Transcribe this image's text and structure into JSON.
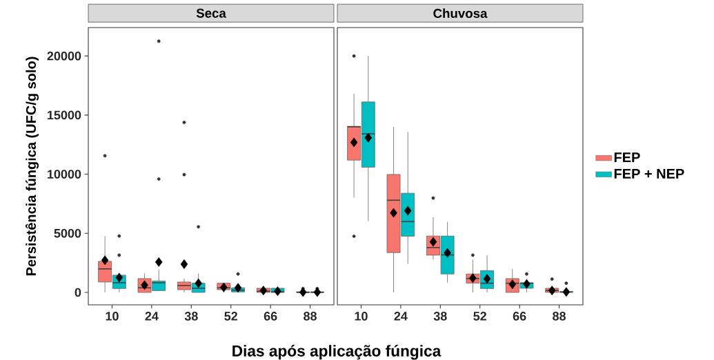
{
  "chart_data": [
    {
      "type": "box",
      "title": "Seca",
      "xlabel": "Dias após aplicação fúngica",
      "ylabel": "Persistência fúngica (UFC/g solo)",
      "categories": [
        "10",
        "24",
        "38",
        "52",
        "66",
        "88"
      ],
      "ylim": [
        -1050,
        22400
      ],
      "yticks": [
        0,
        5000,
        10000,
        15000,
        20000
      ],
      "grid": false,
      "series": [
        {
          "color": "#f8766d",
          "boxes": [
            {
              "low": 0,
              "q1": 880,
              "median": 1990,
              "q3": 2630,
              "high": 4770,
              "mean": 2720,
              "outliers": [
                11560
              ]
            },
            {
              "low": 0,
              "q1": 0,
              "median": 390,
              "q3": 1170,
              "high": 1600,
              "mean": 620
            },
            {
              "low": 0,
              "q1": 230,
              "median": 580,
              "q3": 880,
              "high": 1170,
              "mean": 2390,
              "outliers": [
                9960,
                14380
              ]
            },
            {
              "low": 0,
              "q1": 230,
              "median": 390,
              "q3": 780,
              "high": 780,
              "mean": 430
            },
            {
              "low": 0,
              "q1": 0,
              "median": 100,
              "q3": 350,
              "high": 350,
              "mean": 160
            },
            {
              "low": 0,
              "q1": 0,
              "median": 0,
              "q3": 60,
              "high": 60,
              "mean": 20,
              "outliers": [
                330
              ]
            }
          ]
        },
        {
          "color": "#00bfc4",
          "boxes": [
            {
              "low": 0,
              "q1": 330,
              "median": 820,
              "q3": 1460,
              "high": 1460,
              "mean": 1260,
              "outliers": [
                3150,
                4770
              ]
            },
            {
              "low": 150,
              "q1": 150,
              "median": 820,
              "q3": 970,
              "high": 1950,
              "mean": 2570,
              "outliers": [
                9590,
                21250
              ]
            },
            {
              "low": 0,
              "q1": 0,
              "median": 350,
              "q3": 780,
              "high": 1600,
              "mean": 780,
              "outliers": [
                5550
              ]
            },
            {
              "low": 40,
              "q1": 40,
              "median": 190,
              "q3": 390,
              "high": 390,
              "mean": 390,
              "outliers": [
                1560
              ]
            },
            {
              "low": 0,
              "q1": 0,
              "median": 40,
              "q3": 350,
              "high": 350,
              "mean": 100
            },
            {
              "low": 0,
              "q1": 0,
              "median": 0,
              "q3": 60,
              "high": 60,
              "mean": 20,
              "outliers": [
                330
              ]
            }
          ]
        }
      ]
    },
    {
      "type": "box",
      "title": "Chuvosa",
      "categories": [
        "10",
        "24",
        "38",
        "52",
        "66",
        "88"
      ],
      "ylim": [
        -1050,
        22400
      ],
      "tick_labels": "x",
      "grid": false,
      "legend": "right",
      "series": [
        {
          "name": "FEP",
          "color": "#f8766d",
          "boxes": [
            {
              "low": 8020,
              "q1": 11190,
              "median": 14010,
              "q3": 14050,
              "high": 16810,
              "mean": 12690,
              "outliers": [
                4750,
                20000
              ]
            },
            {
              "low": 0,
              "q1": 3370,
              "median": 7800,
              "q3": 9980,
              "high": 14010,
              "mean": 6730
            },
            {
              "low": 2780,
              "q1": 3150,
              "median": 3790,
              "q3": 4770,
              "high": 6360,
              "mean": 4280,
              "outliers": [
                7980
              ]
            },
            {
              "low": 0,
              "q1": 780,
              "median": 1170,
              "q3": 1560,
              "high": 2760,
              "mean": 1210,
              "outliers": [
                3150
              ]
            },
            {
              "low": 0,
              "q1": 0,
              "median": 780,
              "q3": 1170,
              "high": 1950,
              "mean": 680
            },
            {
              "low": 0,
              "q1": 0,
              "median": 160,
              "q3": 350,
              "high": 350,
              "mean": 160,
              "outliers": [
                1130
              ]
            }
          ]
        },
        {
          "name": "FEP + NEP",
          "color": "#00bfc4",
          "boxes": [
            {
              "low": 6030,
              "q1": 10590,
              "median": 13410,
              "q3": 16110,
              "high": 20000,
              "mean": 13080
            },
            {
              "low": 2410,
              "q1": 4750,
              "median": 5990,
              "q3": 8390,
              "high": 13580,
              "mean": 6910
            },
            {
              "low": 820,
              "q1": 1560,
              "median": 3170,
              "q3": 4770,
              "high": 5970,
              "mean": 3350
            },
            {
              "low": 0,
              "q1": 330,
              "median": 780,
              "q3": 1850,
              "high": 3150,
              "mean": 1150
            },
            {
              "low": 0,
              "q1": 350,
              "median": 780,
              "q3": 820,
              "high": 1130,
              "mean": 720,
              "outliers": [
                1560
              ]
            },
            {
              "low": 0,
              "q1": 0,
              "median": 40,
              "q3": 60,
              "high": 390,
              "mean": 40,
              "outliers": [
                780
              ]
            }
          ]
        }
      ]
    }
  ]
}
